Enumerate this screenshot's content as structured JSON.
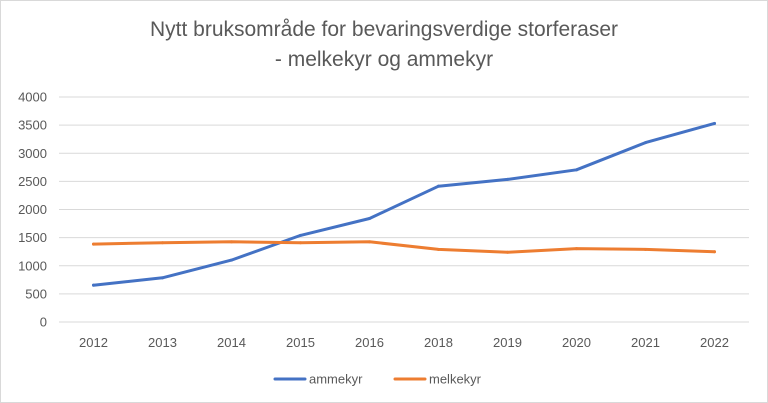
{
  "chart_data": {
    "type": "line",
    "title_line1": "Nytt bruksområde for bevaringsverdige storferaser",
    "title_line2": "- melkekyr og ammekyr",
    "categories": [
      "2012",
      "2013",
      "2014",
      "2015",
      "2016",
      "2018",
      "2019",
      "2020",
      "2021",
      "2022"
    ],
    "series": [
      {
        "name": "ammekyr",
        "color": "#4472c4",
        "values": [
          655,
          785,
          1100,
          1540,
          1840,
          2415,
          2535,
          2705,
          3190,
          3530
        ]
      },
      {
        "name": "melkekyr",
        "color": "#ed7d31",
        "values": [
          1385,
          1410,
          1425,
          1410,
          1425,
          1290,
          1240,
          1305,
          1290,
          1250
        ]
      }
    ],
    "ylim": [
      0,
      4000
    ],
    "yticks": [
      0,
      500,
      1000,
      1500,
      2000,
      2500,
      3000,
      3500,
      4000
    ],
    "grid": true,
    "gridColor": "#d9d9d9",
    "legend_position": "bottom",
    "xlabel": "",
    "ylabel": ""
  }
}
